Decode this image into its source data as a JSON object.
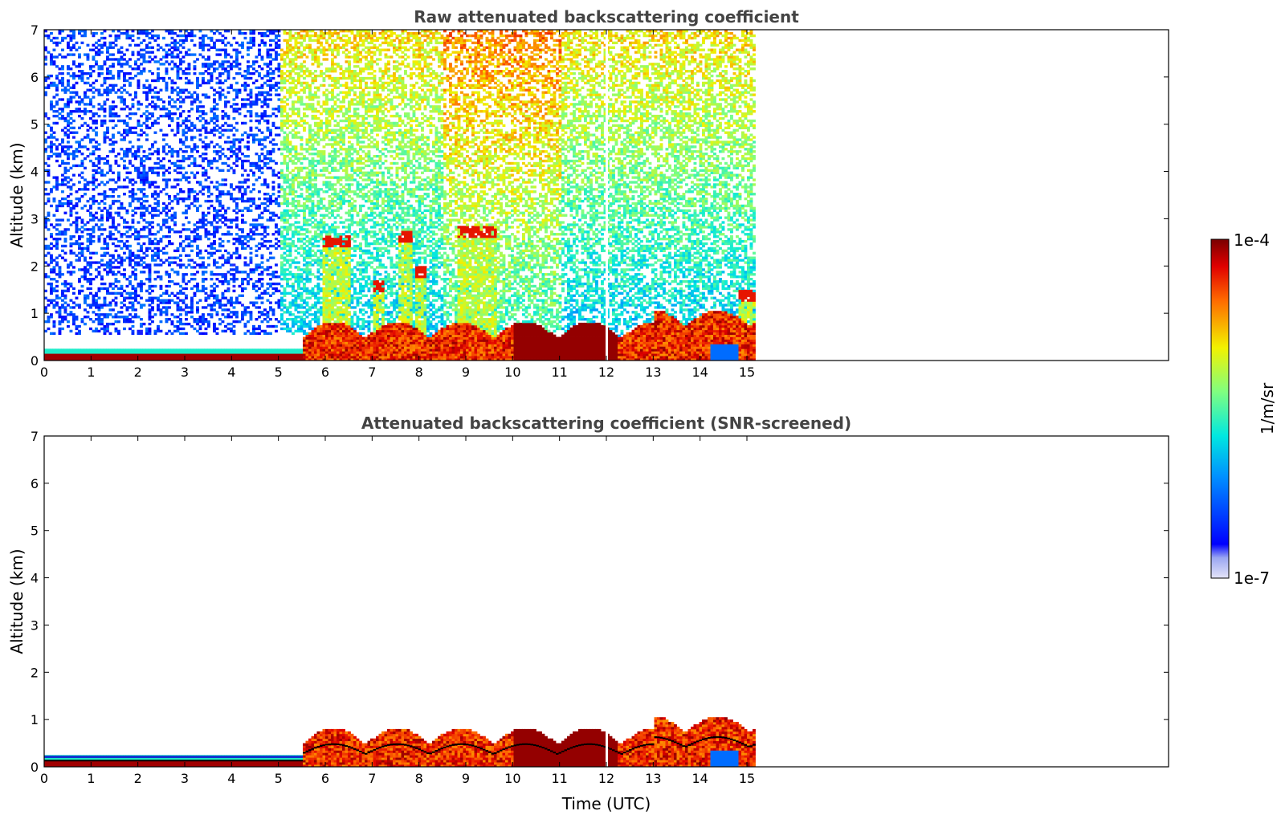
{
  "chart_data": [
    {
      "type": "heatmap",
      "title": "Raw attenuated backscattering coefficient",
      "xlabel": "",
      "ylabel": "Altitude (km)",
      "xlim": [
        0,
        24
      ],
      "ylim": [
        0,
        7
      ],
      "x_ticks": [
        "0",
        "1",
        "2",
        "3",
        "4",
        "5",
        "6",
        "7",
        "8",
        "9",
        "10",
        "11",
        "12",
        "13",
        "14",
        "15"
      ],
      "y_ticks": [
        "0",
        "1",
        "2",
        "3",
        "4",
        "5",
        "6",
        "7"
      ],
      "data_end_time": 15.15,
      "gap_time": 12.0,
      "features": [
        {
          "label": "surface layer",
          "x": [
            0,
            5.5
          ],
          "y": [
            0,
            0.25
          ]
        },
        {
          "label": "boundary layer",
          "x": [
            5.5,
            15.15
          ],
          "y": [
            0,
            0.9
          ]
        },
        {
          "label": "cloud column",
          "x": [
            5.9,
            6.5
          ],
          "y": [
            0,
            2.6
          ]
        },
        {
          "label": "cloud column",
          "x": [
            7.0,
            7.2
          ],
          "y": [
            0,
            1.7
          ]
        },
        {
          "label": "cloud column",
          "x": [
            7.5,
            7.8
          ],
          "y": [
            0,
            2.7
          ]
        },
        {
          "label": "cloud column",
          "x": [
            7.9,
            8.1
          ],
          "y": [
            0,
            2.0
          ]
        },
        {
          "label": "cloud column",
          "x": [
            8.8,
            9.6
          ],
          "y": [
            0,
            2.8
          ]
        },
        {
          "label": "cloud column",
          "x": [
            14.8,
            15.15
          ],
          "y": [
            0,
            1.5
          ]
        }
      ]
    },
    {
      "type": "heatmap",
      "title": "Attenuated backscattering coefficient (SNR-screened)",
      "xlabel": "Time (UTC)",
      "ylabel": "Altitude (km)",
      "xlim": [
        0,
        24
      ],
      "ylim": [
        0,
        7
      ],
      "x_ticks": [
        "0",
        "1",
        "2",
        "3",
        "4",
        "5",
        "6",
        "7",
        "8",
        "9",
        "10",
        "11",
        "12",
        "13",
        "14",
        "15"
      ],
      "y_ticks": [
        "0",
        "1",
        "2",
        "3",
        "4",
        "5",
        "6",
        "7"
      ],
      "data_end_time": 15.15,
      "gap_time": 12.0
    }
  ],
  "colorbar": {
    "label": "1/m/sr",
    "max_label": "1e-4",
    "min_label": "1e-7",
    "colormap": "jet"
  }
}
